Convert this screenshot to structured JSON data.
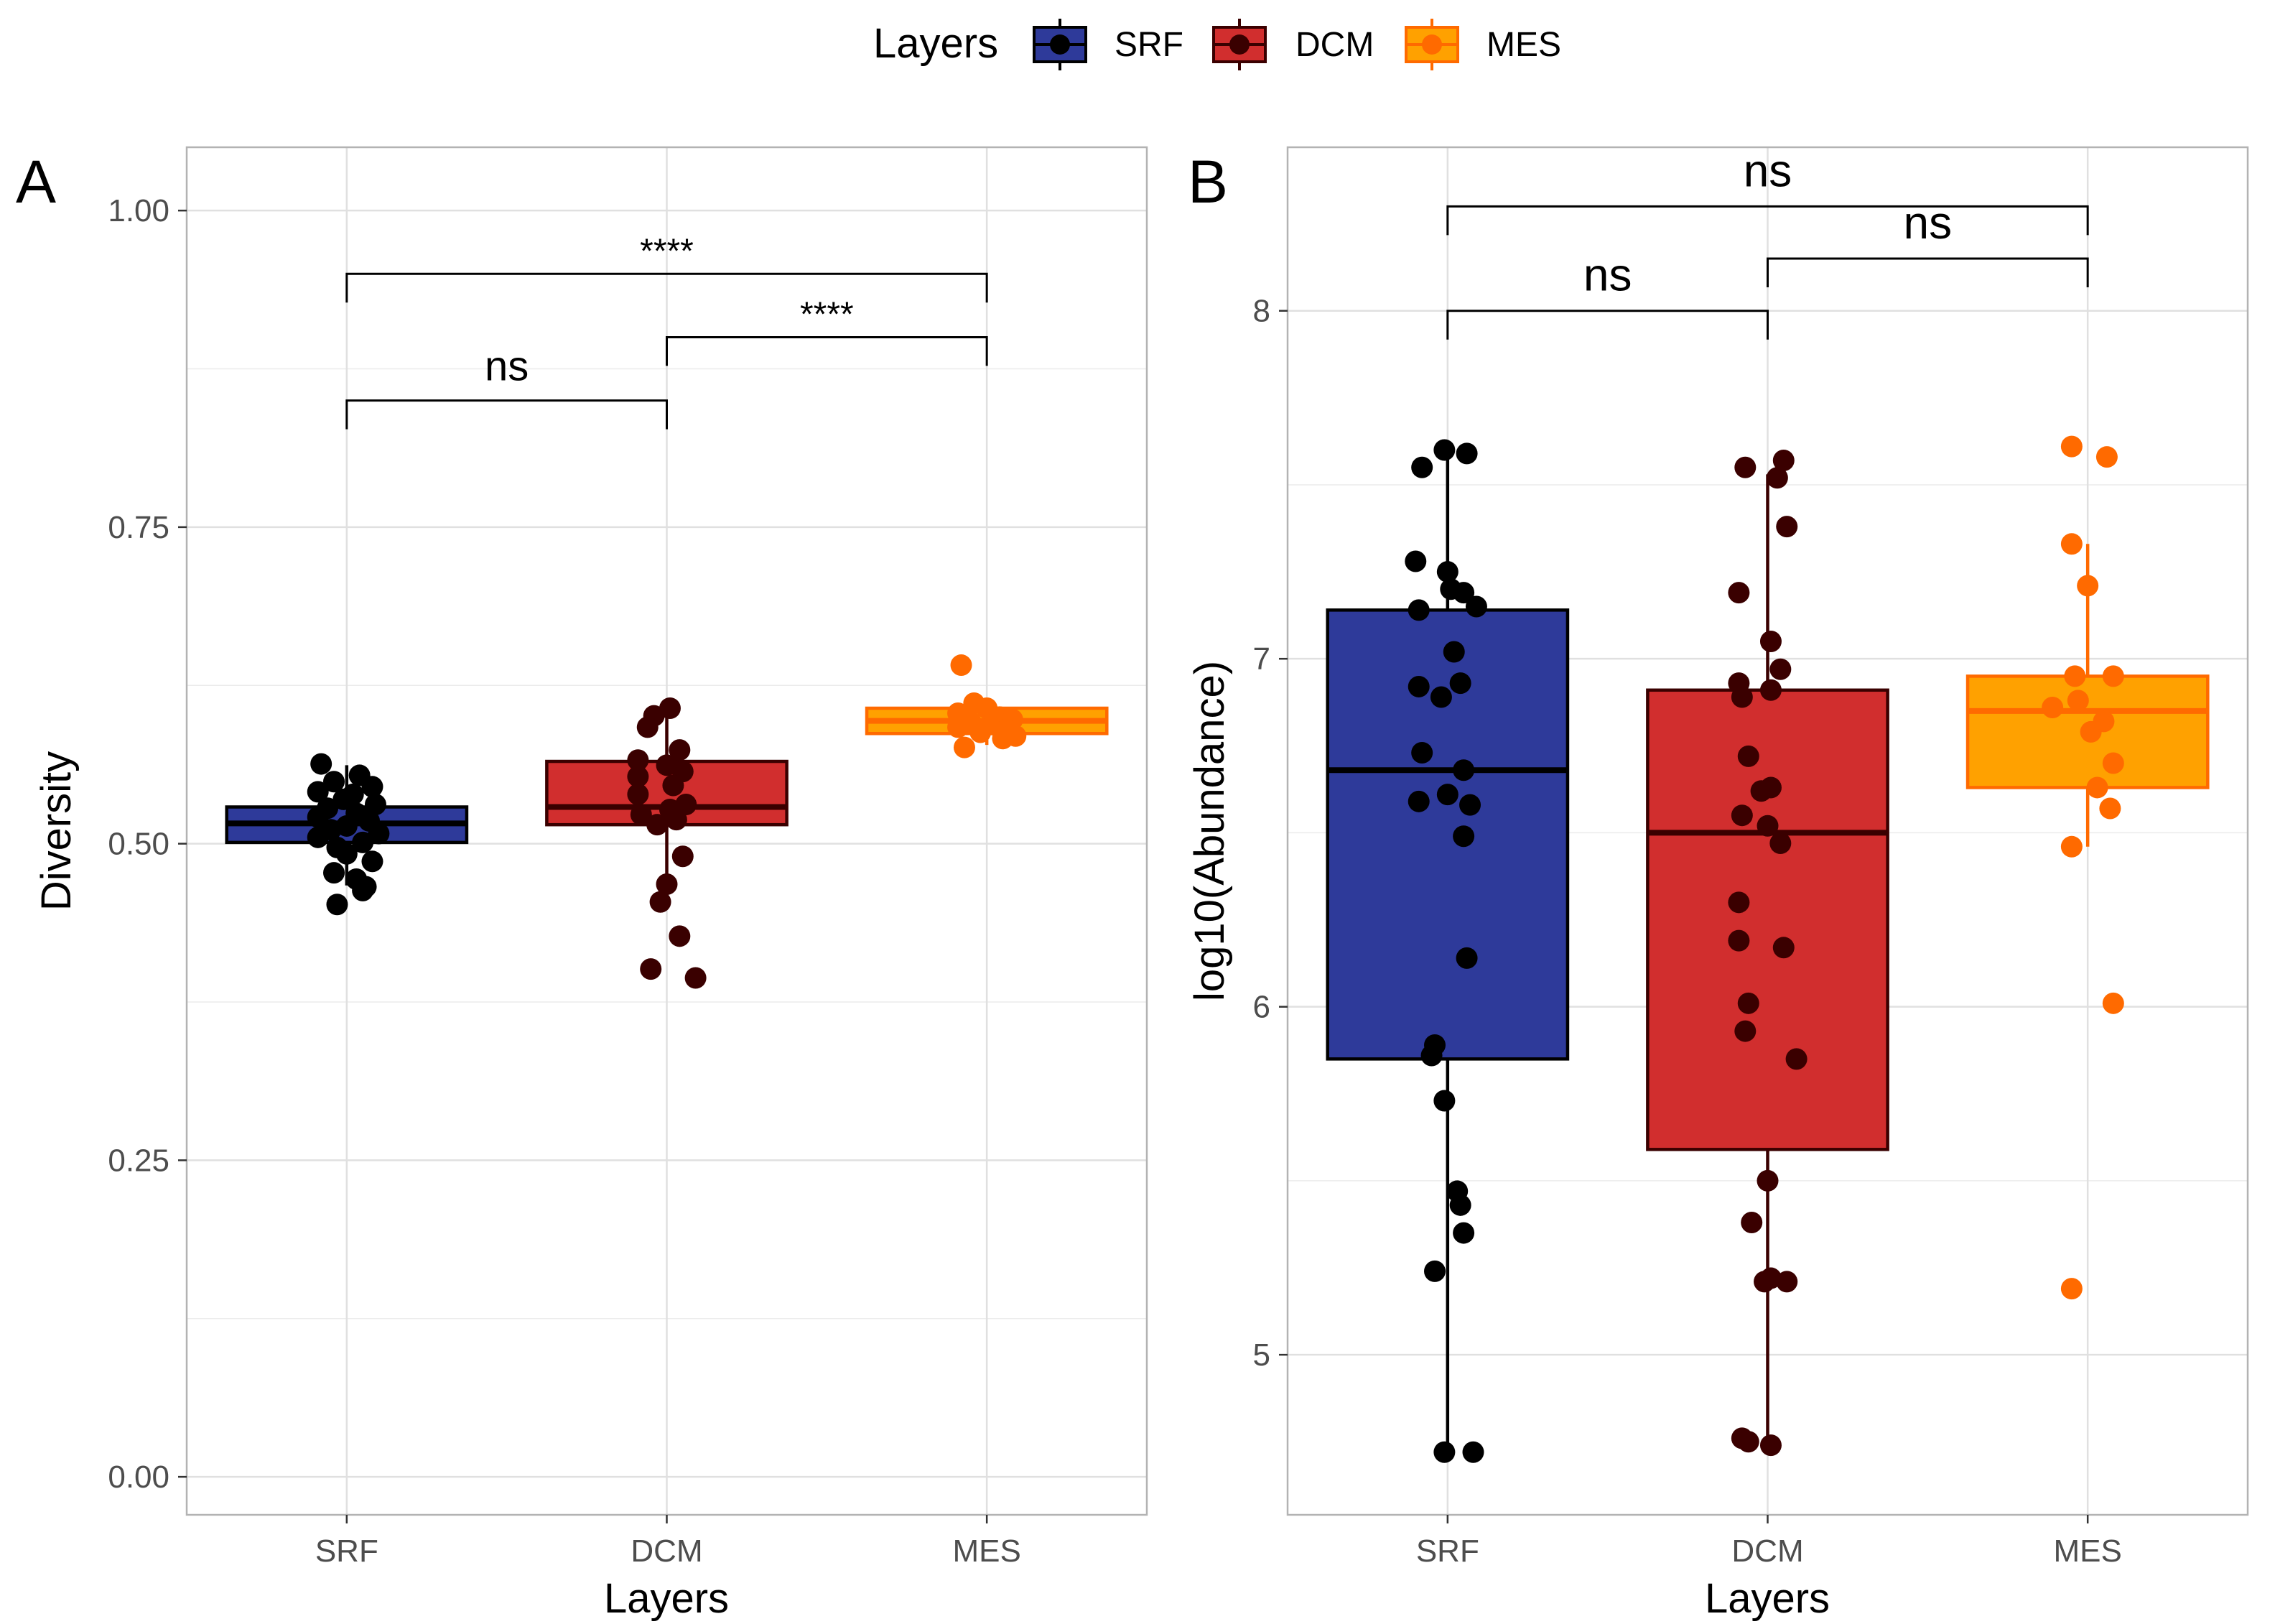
{
  "legend": {
    "title": "Layers",
    "items": [
      {
        "label": "SRF",
        "fill": "#2E3A9A",
        "stroke": "#000000",
        "dot": "#000000"
      },
      {
        "label": "DCM",
        "fill": "#D12E2E",
        "stroke": "#3A0000",
        "dot": "#3A0000"
      },
      {
        "label": "MES",
        "fill": "#FFA100",
        "stroke": "#FF6A00",
        "dot": "#FF6A00"
      }
    ]
  },
  "chart_data": [
    {
      "type": "box",
      "panel_label": "A",
      "xlabel": "Layers",
      "ylabel": "Diversity",
      "categories": [
        "SRF",
        "DCM",
        "MES"
      ],
      "ylim": [
        -0.03,
        1.05
      ],
      "yticks": [
        0.0,
        0.25,
        0.5,
        0.75,
        1.0
      ],
      "ytick_labels": [
        "0.00",
        "0.25",
        "0.50",
        "0.75",
        "1.00"
      ],
      "grid": true,
      "boxes": [
        {
          "category": "SRF",
          "q1": 0.501,
          "median": 0.516,
          "q3": 0.529,
          "whisker_low": 0.467,
          "whisker_high": 0.562
        },
        {
          "category": "DCM",
          "q1": 0.515,
          "median": 0.529,
          "q3": 0.565,
          "whisker_low": 0.462,
          "whisker_high": 0.608
        },
        {
          "category": "MES",
          "q1": 0.587,
          "median": 0.597,
          "q3": 0.607,
          "whisker_low": 0.578,
          "whisker_high": 0.612
        }
      ],
      "points": [
        {
          "category": "SRF",
          "values": [
            0.563,
            0.554,
            0.549,
            0.545,
            0.541,
            0.539,
            0.535,
            0.531,
            0.528,
            0.524,
            0.521,
            0.518,
            0.514,
            0.511,
            0.508,
            0.505,
            0.501,
            0.497,
            0.492,
            0.486,
            0.477,
            0.472,
            0.466,
            0.463,
            0.452
          ]
        },
        {
          "category": "DCM",
          "values": [
            0.607,
            0.601,
            0.592,
            0.574,
            0.566,
            0.562,
            0.557,
            0.553,
            0.546,
            0.539,
            0.531,
            0.527,
            0.523,
            0.519,
            0.515,
            0.49,
            0.468,
            0.454,
            0.427,
            0.401,
            0.394
          ]
        },
        {
          "category": "MES",
          "values": [
            0.641,
            0.611,
            0.607,
            0.603,
            0.6,
            0.598,
            0.596,
            0.594,
            0.592,
            0.59,
            0.588,
            0.585,
            0.583,
            0.576
          ]
        }
      ],
      "jitter": {
        "SRF": [
          -0.08,
          0.04,
          -0.04,
          0.08,
          -0.09,
          0.02,
          -0.01,
          0.09,
          -0.06,
          0.03,
          -0.09,
          0.07,
          0.0,
          -0.05,
          0.1,
          -0.09,
          0.05,
          -0.03,
          0.0,
          0.08,
          -0.04,
          0.03,
          0.06,
          0.05,
          -0.03
        ],
        "DCM": [
          0.01,
          -0.04,
          -0.06,
          0.04,
          -0.09,
          0.0,
          0.05,
          -0.09,
          0.02,
          -0.09,
          0.06,
          0.01,
          -0.08,
          0.03,
          -0.03,
          0.05,
          0.0,
          -0.02,
          0.04,
          -0.05,
          0.09
        ],
        "MES": [
          -0.08,
          -0.04,
          0.0,
          -0.09,
          0.04,
          0.08,
          -0.05,
          0.02,
          -0.09,
          0.06,
          -0.02,
          0.09,
          0.05,
          -0.07
        ]
      },
      "comparisons": [
        {
          "groups": [
            "SRF",
            "DCM"
          ],
          "label": "ns",
          "y": 0.85
        },
        {
          "groups": [
            "DCM",
            "MES"
          ],
          "label": "****",
          "y": 0.9
        },
        {
          "groups": [
            "SRF",
            "MES"
          ],
          "label": "****",
          "y": 0.95
        }
      ]
    },
    {
      "type": "box",
      "panel_label": "B",
      "xlabel": "Layers",
      "ylabel": "log10(Abundance)",
      "categories": [
        "SRF",
        "DCM",
        "MES"
      ],
      "ylim": [
        4.54,
        8.47
      ],
      "yticks": [
        5,
        6,
        7,
        8
      ],
      "ytick_labels": [
        "5",
        "6",
        "7",
        "8"
      ],
      "grid": true,
      "boxes": [
        {
          "category": "SRF",
          "q1": 5.85,
          "median": 6.68,
          "q3": 7.14,
          "whisker_low": 4.72,
          "whisker_high": 7.6
        },
        {
          "category": "DCM",
          "q1": 5.59,
          "median": 6.5,
          "q3": 6.91,
          "whisker_low": 4.74,
          "whisker_high": 7.53
        },
        {
          "category": "MES",
          "q1": 6.63,
          "median": 6.85,
          "q3": 6.95,
          "whisker_low": 6.46,
          "whisker_high": 7.33
        }
      ],
      "points": [
        {
          "category": "SRF",
          "values": [
            7.6,
            7.59,
            7.55,
            7.28,
            7.25,
            7.2,
            7.19,
            7.15,
            7.14,
            7.02,
            6.93,
            6.92,
            6.89,
            6.73,
            6.68,
            6.61,
            6.59,
            6.58,
            6.49,
            6.14,
            5.89,
            5.86,
            5.73,
            5.47,
            5.43,
            5.35,
            5.24,
            4.72,
            4.72
          ]
        },
        {
          "category": "DCM",
          "values": [
            7.57,
            7.55,
            7.52,
            7.38,
            7.19,
            7.05,
            6.97,
            6.93,
            6.91,
            6.89,
            6.72,
            6.63,
            6.62,
            6.55,
            6.52,
            6.47,
            6.3,
            6.19,
            6.17,
            6.01,
            5.93,
            5.85,
            5.5,
            5.38,
            5.22,
            5.21,
            5.21,
            4.76,
            4.75,
            4.74
          ]
        },
        {
          "category": "MES",
          "values": [
            7.61,
            7.58,
            7.33,
            7.21,
            6.95,
            6.95,
            6.88,
            6.86,
            6.82,
            6.79,
            6.7,
            6.63,
            6.57,
            6.46,
            6.01,
            5.19
          ]
        }
      ],
      "jitter": {
        "SRF": [
          -0.01,
          0.06,
          -0.08,
          -0.1,
          0.0,
          0.01,
          0.05,
          0.09,
          -0.09,
          0.02,
          0.04,
          -0.09,
          -0.02,
          -0.08,
          0.05,
          0.0,
          -0.09,
          0.07,
          0.05,
          0.06,
          -0.04,
          -0.05,
          -0.01,
          0.03,
          0.04,
          0.05,
          -0.04,
          -0.01,
          0.08
        ],
        "DCM": [
          0.05,
          -0.07,
          0.03,
          0.06,
          -0.09,
          0.01,
          0.04,
          -0.09,
          0.01,
          -0.08,
          -0.06,
          0.01,
          -0.02,
          -0.08,
          0.0,
          0.04,
          -0.09,
          -0.09,
          0.05,
          -0.06,
          -0.07,
          0.09,
          0.0,
          -0.05,
          0.01,
          -0.01,
          0.06,
          -0.08,
          -0.06,
          0.01
        ],
        "MES": [
          -0.05,
          0.06,
          -0.05,
          0.0,
          -0.04,
          0.08,
          -0.03,
          -0.11,
          0.05,
          0.01,
          0.08,
          0.03,
          0.07,
          -0.05,
          0.08,
          -0.05
        ]
      },
      "comparisons": [
        {
          "groups": [
            "SRF",
            "DCM"
          ],
          "label": "ns",
          "y": 8.0
        },
        {
          "groups": [
            "DCM",
            "MES"
          ],
          "label": "ns",
          "y": 8.15
        },
        {
          "groups": [
            "SRF",
            "MES"
          ],
          "label": "ns",
          "y": 8.3
        }
      ]
    }
  ]
}
